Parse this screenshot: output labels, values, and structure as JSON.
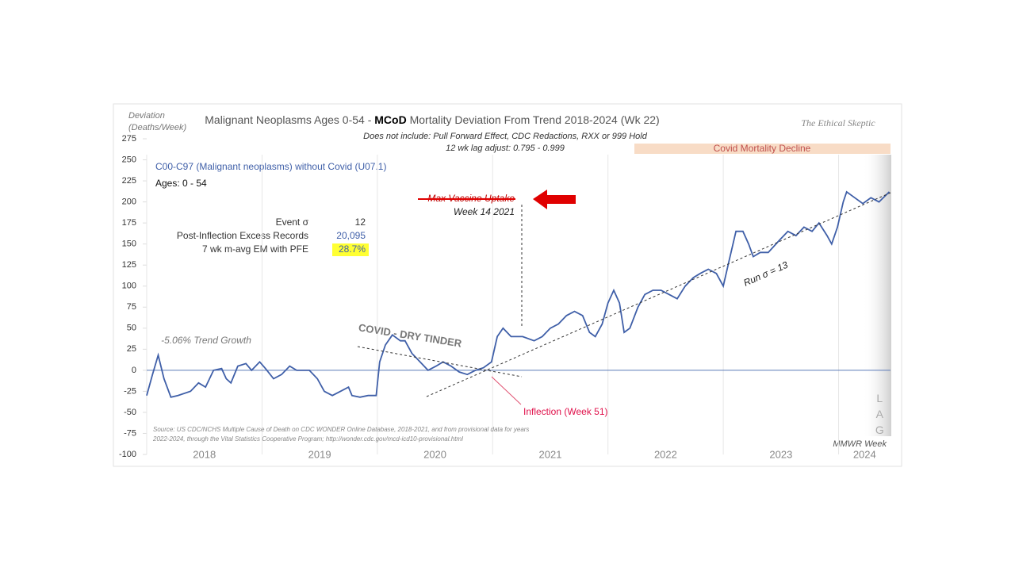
{
  "chart_data": {
    "type": "line",
    "title_parts": [
      "Malignant Neoplasms Ages 0-54 - ",
      "MCoD",
      " Mortality Deviation From Trend  2018-2024 (Wk 22)"
    ],
    "subtitle_lines": [
      "Does not include: Pull Forward Effect,  CDC Redactions, RXX or 999 Hold",
      "12 wk lag adjust: 0.795 - 0.999"
    ],
    "brand": "The Ethical Skeptic",
    "y_label_lines": [
      "Deviation",
      "(Deaths/Week)"
    ],
    "x_label": "MMWR Week",
    "series_label": "C00-C97 (Malignant neoplasms) without Covid (U07.1)",
    "ages_label": "Ages: 0 - 54",
    "stats": [
      {
        "label": "Event σ",
        "value": "12"
      },
      {
        "label": "Post-Inflection Excess Records",
        "value": "20,095"
      },
      {
        "label": "7 wk m-avg EM with PFE",
        "value": "28.7%"
      }
    ],
    "annotations": {
      "trend_growth": "-5.06% Trend Growth",
      "dry_tinder": "COVID - DRY TINDER",
      "max_vaccine": "Max Vaccine Uptake",
      "vaccine_week": "Week 14 2021",
      "inflection": "Inflection (Week 51)",
      "run_sigma": "Run σ = 13",
      "covid_decline": "Covid Mortality Decline",
      "lag": "LAG",
      "source": [
        "Source: US CDC/NCHS Multiple Cause of Death on CDC WONDER Online Database, 2018-2021, and from provisional data for years",
        "2022-2024, through the Vital Statistics Cooperative Program; http://wonder.cdc.gov/mcd-icd10-provisional.html"
      ]
    },
    "xlim": [
      2018,
      2024.45
    ],
    "xticks": [
      {
        "value": 2018,
        "label": "2018"
      },
      {
        "value": 2019,
        "label": "2019"
      },
      {
        "value": 2020,
        "label": "2020"
      },
      {
        "value": 2021,
        "label": "2021"
      },
      {
        "value": 2022,
        "label": "2022"
      },
      {
        "value": 2023,
        "label": "2023"
      },
      {
        "value": 2024,
        "label": "2024"
      }
    ],
    "ylim": [
      -100,
      275
    ],
    "yticks": [
      -100,
      -75,
      -50,
      -25,
      0,
      25,
      50,
      75,
      100,
      125,
      150,
      175,
      200,
      225,
      250,
      275
    ],
    "series": [
      {
        "color": "#3f5fa8",
        "x": [
          2018.0,
          2018.05,
          2018.1,
          2018.15,
          2018.21,
          2018.27,
          2018.38,
          2018.45,
          2018.51,
          2018.58,
          2018.65,
          2018.69,
          2018.73,
          2018.79,
          2018.86,
          2018.91,
          2018.98,
          2019.03,
          2019.1,
          2019.17,
          2019.24,
          2019.3,
          2019.41,
          2019.48,
          2019.54,
          2019.61,
          2019.68,
          2019.75,
          2019.78,
          2019.85,
          2019.92,
          2019.99,
          2020.02,
          2020.07,
          2020.13,
          2020.2,
          2020.24,
          2020.3,
          2020.37,
          2020.44,
          2020.51,
          2020.57,
          2020.64,
          2020.71,
          2020.78,
          2020.85,
          2020.92,
          2020.99,
          2021.04,
          2021.09,
          2021.16,
          2021.26,
          2021.36,
          2021.43,
          2021.5,
          2021.57,
          2021.64,
          2021.71,
          2021.78,
          2021.84,
          2021.89,
          2021.95,
          2022.0,
          2022.05,
          2022.1,
          2022.14,
          2022.19,
          2022.26,
          2022.32,
          2022.39,
          2022.46,
          2022.53,
          2022.6,
          2022.67,
          2022.74,
          2022.8,
          2022.87,
          2022.94,
          2023.0,
          2023.05,
          2023.11,
          2023.17,
          2023.22,
          2023.26,
          2023.32,
          2023.39,
          2023.49,
          2023.56,
          2023.63,
          2023.7,
          2023.77,
          2023.83,
          2023.9,
          2023.94,
          2023.99,
          2024.04,
          2024.07,
          2024.14,
          2024.21,
          2024.28,
          2024.35,
          2024.44
        ],
        "values": [
          -30,
          -5,
          18,
          -10,
          -32,
          -30,
          -25,
          -15,
          -20,
          0,
          2,
          -10,
          -15,
          5,
          8,
          0,
          10,
          2,
          -10,
          -5,
          5,
          0,
          0,
          -10,
          -25,
          -30,
          -25,
          -20,
          -30,
          -32,
          -30,
          -30,
          10,
          30,
          42,
          35,
          35,
          20,
          10,
          0,
          5,
          10,
          5,
          -2,
          -5,
          0,
          3,
          10,
          40,
          50,
          40,
          40,
          35,
          40,
          50,
          55,
          65,
          70,
          65,
          45,
          40,
          55,
          80,
          95,
          80,
          45,
          50,
          75,
          90,
          95,
          95,
          90,
          85,
          100,
          110,
          115,
          120,
          115,
          100,
          130,
          165,
          165,
          150,
          135,
          140,
          140,
          155,
          165,
          160,
          170,
          165,
          175,
          160,
          150,
          170,
          200,
          212,
          205,
          198,
          205,
          200,
          212
        ]
      }
    ]
  }
}
